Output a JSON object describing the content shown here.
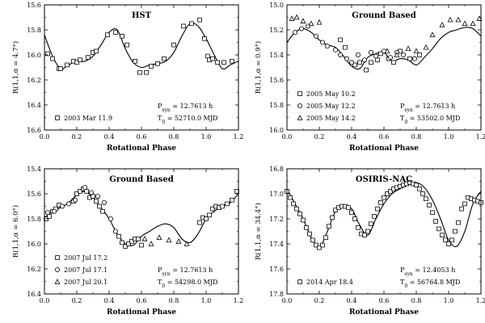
{
  "chart_data": [
    {
      "type": "scatter",
      "title": "HST",
      "xlabel": "Rotational Phase",
      "ylabel": "R(1,1,α = 4.7°)",
      "xlim": [
        0.0,
        1.2
      ],
      "ylim": [
        15.6,
        16.6
      ],
      "y_inverted": true,
      "xticks": [
        "0.0",
        "0.2",
        "0.4",
        "0.6",
        "0.8",
        "1.0",
        "1.2"
      ],
      "yticks": [
        "15.6",
        "15.8",
        "16.0",
        "16.2",
        "16.4",
        "16.6"
      ],
      "period": "P_syn = 12.7613 h",
      "epoch": "T_0 = 52710.0 MJD",
      "series": [
        {
          "name": "2003 Mar 11.9",
          "marker": "square",
          "x": [
            0.02,
            0.05,
            0.09,
            0.1,
            0.14,
            0.18,
            0.2,
            0.22,
            0.27,
            0.3,
            0.32,
            0.39,
            0.44,
            0.48,
            0.51,
            0.56,
            0.59,
            0.63,
            0.66,
            0.7,
            0.74,
            0.8,
            0.86,
            0.91,
            0.96,
            0.99,
            1.01,
            1.02,
            1.04,
            1.07,
            1.11,
            1.16
          ],
          "y": [
            15.99,
            16.03,
            16.11,
            16.11,
            16.08,
            16.05,
            16.06,
            16.04,
            16.02,
            15.98,
            15.97,
            15.84,
            15.82,
            15.85,
            15.92,
            16.05,
            16.14,
            16.14,
            16.09,
            16.07,
            16.03,
            15.92,
            15.77,
            15.75,
            15.72,
            15.87,
            16.01,
            16.04,
            16.03,
            16.06,
            16.06,
            16.05
          ]
        }
      ],
      "fit": {
        "x": [
          0.0,
          0.05,
          0.1,
          0.15,
          0.2,
          0.25,
          0.3,
          0.35,
          0.4,
          0.45,
          0.5,
          0.55,
          0.6,
          0.65,
          0.7,
          0.75,
          0.8,
          0.85,
          0.9,
          0.95,
          1.0,
          1.05,
          1.1,
          1.15,
          1.2
        ],
        "y": [
          15.84,
          16.01,
          16.11,
          16.08,
          16.05,
          16.05,
          16.01,
          15.92,
          15.82,
          15.8,
          15.95,
          16.06,
          16.1,
          16.08,
          16.07,
          16.05,
          15.98,
          15.85,
          15.75,
          15.77,
          15.87,
          16.0,
          16.11,
          16.08,
          16.05
        ]
      }
    },
    {
      "type": "scatter",
      "title": "Ground Based",
      "xlabel": "Rotational Phase",
      "ylabel": "R(1,1,α = 0.9°)",
      "xlim": [
        0.0,
        1.2
      ],
      "ylim": [
        15.0,
        16.0
      ],
      "y_inverted": true,
      "xticks": [
        "0.0",
        "0.2",
        "0.4",
        "0.6",
        "0.8",
        "1.0",
        "1.2"
      ],
      "yticks": [
        "15.0",
        "15.2",
        "15.4",
        "15.6",
        "15.8",
        "16.0"
      ],
      "period": "P_syn = 12.7613 h",
      "epoch": "T_0 = 53502.0 MJD",
      "series": [
        {
          "name": "2005 May 10.2",
          "marker": "square",
          "x": [
            0.33,
            0.36,
            0.42,
            0.45,
            0.49,
            0.52,
            0.56,
            0.58,
            0.63,
            0.66,
            0.7,
            0.76,
            0.82
          ],
          "y": [
            15.28,
            15.34,
            15.48,
            15.46,
            15.52,
            15.46,
            15.44,
            15.39,
            15.43,
            15.46,
            15.37,
            15.43,
            15.4
          ]
        },
        {
          "name": "2005 May 12.2",
          "marker": "circle",
          "x": [
            0.05,
            0.09,
            0.13,
            0.18,
            0.22,
            0.25,
            0.3,
            0.33,
            0.37,
            0.4,
            0.44,
            0.48,
            0.52,
            0.55,
            0.6,
            0.64,
            0.68,
            0.72,
            0.79
          ],
          "y": [
            15.22,
            15.19,
            15.17,
            15.25,
            15.3,
            15.33,
            15.36,
            15.4,
            15.43,
            15.46,
            15.4,
            15.44,
            15.38,
            15.41,
            15.37,
            15.42,
            15.38,
            15.4,
            15.43
          ]
        },
        {
          "name": "2005 May 14.2",
          "marker": "triangle",
          "x": [
            0.03,
            0.06,
            0.1,
            0.15,
            0.2,
            0.62,
            0.68,
            0.75,
            0.8,
            0.86,
            0.9,
            0.96,
            1.01,
            1.06,
            1.1,
            1.15,
            1.19
          ],
          "y": [
            15.11,
            15.1,
            15.13,
            15.15,
            15.14,
            15.37,
            15.4,
            15.35,
            15.37,
            15.34,
            15.24,
            15.16,
            15.12,
            15.12,
            15.15,
            15.15,
            15.11
          ]
        }
      ],
      "fit": {
        "x": [
          0.0,
          0.05,
          0.1,
          0.15,
          0.2,
          0.25,
          0.3,
          0.35,
          0.4,
          0.45,
          0.5,
          0.55,
          0.6,
          0.65,
          0.7,
          0.75,
          0.8,
          0.85,
          0.9,
          0.95,
          1.0,
          1.05,
          1.1,
          1.15,
          1.2
        ],
        "y": [
          15.3,
          15.22,
          15.19,
          15.22,
          15.28,
          15.32,
          15.34,
          15.41,
          15.49,
          15.51,
          15.42,
          15.39,
          15.38,
          15.45,
          15.43,
          15.44,
          15.48,
          15.42,
          15.35,
          15.27,
          15.22,
          15.2,
          15.18,
          15.19,
          15.25
        ]
      }
    },
    {
      "type": "scatter",
      "title": "Ground Based",
      "xlabel": "Rotational Phase",
      "ylabel": "R(1,1,α = 6.0°)",
      "xlim": [
        0.0,
        1.2
      ],
      "ylim": [
        15.4,
        16.4
      ],
      "y_inverted": true,
      "xticks": [
        "0.0",
        "0.2",
        "0.4",
        "0.6",
        "0.8",
        "1.0",
        "1.2"
      ],
      "yticks": [
        "15.4",
        "15.6",
        "15.8",
        "16.0",
        "16.2",
        "16.4"
      ],
      "period": "P_syn = 12.7613 h",
      "epoch": "T_0 = 54298.0 MJD",
      "series": [
        {
          "name": "2007 Jul 17.2",
          "marker": "square",
          "x": [
            0.01,
            0.03,
            0.05,
            0.07,
            0.09,
            0.18,
            0.2,
            0.22,
            0.24,
            0.26,
            0.28,
            0.3,
            0.32,
            0.34,
            0.36,
            0.46,
            0.48,
            0.5,
            0.52,
            0.54,
            0.56,
            0.58,
            0.6,
            0.96,
            0.98,
            1.0,
            1.02,
            1.04,
            1.06,
            1.08,
            1.1,
            1.13,
            1.16,
            1.19
          ],
          "y": [
            15.8,
            15.78,
            15.74,
            15.72,
            15.69,
            15.66,
            15.6,
            15.58,
            15.56,
            15.58,
            15.63,
            15.62,
            15.66,
            15.7,
            15.74,
            15.94,
            15.99,
            16.02,
            16.0,
            15.98,
            15.96,
            15.96,
            16.01,
            15.83,
            15.79,
            15.8,
            15.77,
            15.72,
            15.7,
            15.71,
            15.7,
            15.68,
            15.65,
            15.58
          ]
        },
        {
          "name": "2007 Jul 17.1",
          "marker": "circle",
          "x": [
            0.02,
            0.06,
            0.11,
            0.15,
            0.19,
            0.25,
            0.29,
            0.33,
            0.37,
            0.41,
            0.44
          ],
          "y": [
            15.75,
            15.74,
            15.7,
            15.68,
            15.65,
            15.55,
            15.59,
            15.62,
            15.67,
            15.8,
            15.9
          ]
        },
        {
          "name": "2007 Jul 20.1",
          "marker": "triangle",
          "x": [
            0.62,
            0.66,
            0.71,
            0.77,
            0.83,
            0.88
          ],
          "y": [
            15.96,
            16.0,
            15.95,
            15.97,
            15.98,
            16.0
          ]
        }
      ],
      "fit": {
        "x": [
          0.0,
          0.05,
          0.1,
          0.15,
          0.2,
          0.25,
          0.3,
          0.35,
          0.4,
          0.45,
          0.5,
          0.55,
          0.6,
          0.65,
          0.7,
          0.75,
          0.8,
          0.85,
          0.9,
          0.95,
          1.0,
          1.05,
          1.1,
          1.15,
          1.2
        ],
        "y": [
          15.79,
          15.74,
          15.71,
          15.67,
          15.61,
          15.58,
          15.63,
          15.71,
          15.8,
          15.92,
          16.0,
          16.01,
          15.94,
          15.9,
          15.86,
          15.84,
          15.87,
          15.96,
          15.99,
          15.92,
          15.8,
          15.74,
          15.7,
          15.67,
          15.6
        ]
      }
    },
    {
      "type": "scatter",
      "title": "OSIRIS-NAC",
      "xlabel": "Rotational Phase",
      "ylabel": "R(1,1,α = 34.4°)",
      "xlim": [
        0.0,
        1.2
      ],
      "ylim": [
        16.8,
        17.8
      ],
      "y_inverted": true,
      "xticks": [
        "0.0",
        "0.2",
        "0.4",
        "0.6",
        "0.8",
        "1.0",
        "1.2"
      ],
      "yticks": [
        "16.8",
        "17.0",
        "17.2",
        "17.4",
        "17.6",
        "17.8"
      ],
      "period": "P_syn = 12.4053 h",
      "epoch": "T_0 = 56764.8 MJD",
      "series": [
        {
          "name": "2014 Apr 18.4",
          "marker": "square",
          "x": [
            0.0,
            0.02,
            0.04,
            0.06,
            0.08,
            0.1,
            0.12,
            0.14,
            0.16,
            0.18,
            0.2,
            0.22,
            0.24,
            0.26,
            0.28,
            0.3,
            0.32,
            0.34,
            0.36,
            0.38,
            0.4,
            0.42,
            0.44,
            0.46,
            0.48,
            0.5,
            0.52,
            0.54,
            0.56,
            0.58,
            0.6,
            0.62,
            0.64,
            0.66,
            0.68,
            0.7,
            0.72,
            0.74,
            0.76,
            0.78,
            0.8,
            0.82,
            0.84,
            0.86,
            0.88,
            0.9,
            0.92,
            0.94,
            0.96,
            0.98,
            1.0,
            1.02,
            1.04,
            1.06,
            1.08,
            1.1,
            1.12,
            1.14,
            1.16,
            1.18,
            1.2
          ],
          "y": [
            16.98,
            17.03,
            17.08,
            17.12,
            17.16,
            17.21,
            17.27,
            17.32,
            17.37,
            17.41,
            17.43,
            17.41,
            17.35,
            17.26,
            17.19,
            17.13,
            17.11,
            17.1,
            17.1,
            17.11,
            17.15,
            17.2,
            17.27,
            17.32,
            17.33,
            17.3,
            17.24,
            17.18,
            17.12,
            17.07,
            17.03,
            17.0,
            16.98,
            16.96,
            16.95,
            16.94,
            16.93,
            16.92,
            16.91,
            16.92,
            16.93,
            16.96,
            17.0,
            17.04,
            17.09,
            17.15,
            17.22,
            17.28,
            17.33,
            17.37,
            17.4,
            17.37,
            17.3,
            17.23,
            17.12,
            17.08,
            17.03,
            17.04,
            17.05,
            17.06,
            17.07
          ]
        }
      ],
      "fit": {
        "x": [
          0.0,
          0.05,
          0.1,
          0.15,
          0.2,
          0.25,
          0.3,
          0.35,
          0.4,
          0.45,
          0.5,
          0.55,
          0.6,
          0.65,
          0.7,
          0.75,
          0.8,
          0.85,
          0.9,
          0.95,
          1.0,
          1.05,
          1.1,
          1.15,
          1.2
        ],
        "y": [
          16.96,
          17.08,
          17.2,
          17.35,
          17.43,
          17.3,
          17.14,
          17.1,
          17.12,
          17.25,
          17.33,
          17.2,
          17.08,
          17.0,
          16.96,
          16.93,
          16.91,
          16.95,
          17.05,
          17.2,
          17.37,
          17.42,
          17.3,
          17.08,
          16.98
        ]
      }
    }
  ]
}
